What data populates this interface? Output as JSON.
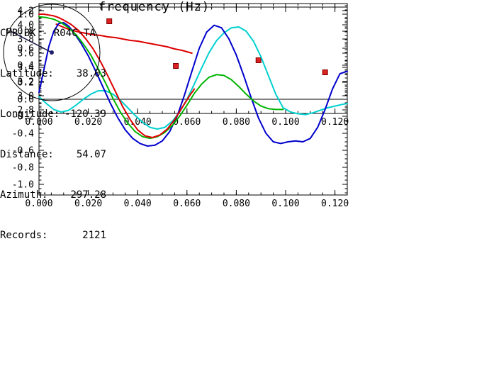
{
  "station_info": {
    "title": "CMB-BK - R04C-TA",
    "rows": [
      {
        "label": "Latitude:",
        "value": "38.03"
      },
      {
        "label": "Longitude:",
        "value": "-120.39"
      },
      {
        "label": "Distance:",
        "value": "54.07"
      },
      {
        "label": "Azimuth:",
        "value": "297.28"
      },
      {
        "label": "Records:",
        "value": "2121"
      }
    ]
  },
  "chart_data": [
    {
      "id": "dispersion",
      "type": "line",
      "title": "",
      "xlabel": "",
      "ylabel": "",
      "xlim": [
        0,
        0.125
      ],
      "ylim": [
        2.75,
        4.25
      ],
      "grid": false,
      "xticks": {
        "values": [
          0.0,
          0.02,
          0.04,
          0.06,
          0.08,
          0.1,
          0.12
        ],
        "labels": [
          "0.000",
          "0.020",
          "0.040",
          "0.060",
          "0.080",
          "0.100",
          "0.120"
        ],
        "minor_step": 0.005
      },
      "yticks": {
        "values": [
          2.8,
          3.0,
          3.2,
          3.4,
          3.6,
          3.8,
          4.0,
          4.2
        ],
        "labels": [
          "2.8",
          "3.0",
          "3.2",
          "3.4",
          "3.6",
          "3.8",
          "4.0",
          "4.2"
        ],
        "minor_step": 0.05
      },
      "series": [
        {
          "name": "predicted-dispersion-curve",
          "type": "line",
          "color": "#dd0000",
          "width": 2,
          "x": [
            0.007,
            0.009,
            0.011,
            0.013,
            0.016,
            0.019,
            0.022,
            0.025,
            0.028,
            0.031,
            0.034,
            0.037,
            0.04,
            0.043,
            0.046,
            0.049,
            0.052,
            0.055,
            0.058,
            0.06,
            0.062
          ],
          "y": [
            4.01,
            3.98,
            3.95,
            3.93,
            3.9,
            3.88,
            3.86,
            3.85,
            3.83,
            3.82,
            3.8,
            3.78,
            3.77,
            3.75,
            3.73,
            3.71,
            3.69,
            3.66,
            3.64,
            3.62,
            3.6
          ]
        },
        {
          "name": "measured-velocity-points",
          "type": "scatter",
          "marker": "square",
          "color": "#dd2020",
          "edge": "#7a0000",
          "x": [
            0.0285,
            0.0555,
            0.089,
            0.116
          ],
          "y": [
            4.05,
            3.42,
            3.5,
            3.33
          ]
        }
      ]
    },
    {
      "id": "correlation",
      "type": "line",
      "title": "",
      "xlabel": "frequency (Hz)",
      "ylabel": "",
      "xlim": [
        0,
        0.125
      ],
      "ylim": [
        -1.125,
        1.125
      ],
      "zero_line": true,
      "grid": false,
      "xticks": {
        "values": [
          0.0,
          0.02,
          0.04,
          0.06,
          0.08,
          0.1,
          0.12
        ],
        "labels": [
          "0.000",
          "0.020",
          "0.040",
          "0.060",
          "0.080",
          "0.100",
          "0.120"
        ],
        "minor_step": 0.005
      },
      "yticks": {
        "values": [
          -1.0,
          -0.8,
          -0.6,
          -0.4,
          -0.2,
          0.0,
          0.2,
          0.4,
          0.6,
          0.8,
          1.0
        ],
        "labels": [
          "-1.0",
          "-0.8",
          "-0.6",
          "-0.4",
          "-0.2",
          "0.0",
          "0.2",
          "0.4",
          "0.6",
          "0.8",
          "1.0"
        ],
        "minor_step": 0.05
      },
      "series": [
        {
          "name": "correlation-trace-cyan",
          "type": "line",
          "color": "#00d0d0",
          "width": 2,
          "x": [
            0.0,
            0.003,
            0.006,
            0.009,
            0.012,
            0.015,
            0.018,
            0.021,
            0.024,
            0.027,
            0.03,
            0.033,
            0.036,
            0.039,
            0.042,
            0.045,
            0.048,
            0.051,
            0.054,
            0.057,
            0.06,
            0.063,
            0.066,
            0.069,
            0.072,
            0.075,
            0.078,
            0.081,
            0.084,
            0.087,
            0.09,
            0.093,
            0.096,
            0.099,
            0.102,
            0.105,
            0.108,
            0.111,
            0.114,
            0.117,
            0.12,
            0.123,
            0.125
          ],
          "y": [
            0.03,
            -0.05,
            -0.12,
            -0.15,
            -0.13,
            -0.07,
            0.0,
            0.06,
            0.1,
            0.1,
            0.06,
            -0.01,
            -0.1,
            -0.19,
            -0.27,
            -0.33,
            -0.35,
            -0.33,
            -0.26,
            -0.15,
            0.0,
            0.18,
            0.37,
            0.55,
            0.69,
            0.78,
            0.84,
            0.85,
            0.8,
            0.68,
            0.5,
            0.28,
            0.06,
            -0.1,
            -0.15,
            -0.17,
            -0.18,
            -0.16,
            -0.13,
            -0.1,
            -0.08,
            -0.06,
            -0.05
          ]
        },
        {
          "name": "correlation-trace-blue",
          "type": "line",
          "color": "#0000cd",
          "width": 2,
          "x": [
            0.0,
            0.002,
            0.004,
            0.006,
            0.008,
            0.01,
            0.012,
            0.014,
            0.017,
            0.02,
            0.023,
            0.026,
            0.029,
            0.032,
            0.035,
            0.038,
            0.041,
            0.044,
            0.047,
            0.05,
            0.053,
            0.056,
            0.059,
            0.062,
            0.065,
            0.068,
            0.071,
            0.074,
            0.077,
            0.08,
            0.083,
            0.086,
            0.089,
            0.092,
            0.095,
            0.098,
            0.101,
            0.104,
            0.107,
            0.11,
            0.113,
            0.116,
            0.119,
            0.122,
            0.125
          ],
          "y": [
            0.08,
            0.35,
            0.62,
            0.8,
            0.89,
            0.9,
            0.86,
            0.79,
            0.66,
            0.51,
            0.33,
            0.14,
            -0.05,
            -0.22,
            -0.36,
            -0.46,
            -0.52,
            -0.55,
            -0.54,
            -0.49,
            -0.38,
            -0.2,
            0.05,
            0.33,
            0.6,
            0.79,
            0.87,
            0.84,
            0.71,
            0.52,
            0.28,
            0.02,
            -0.22,
            -0.4,
            -0.5,
            -0.52,
            -0.5,
            -0.49,
            -0.5,
            -0.46,
            -0.33,
            -0.12,
            0.12,
            0.3,
            0.33
          ]
        },
        {
          "name": "correlation-trace-green",
          "type": "line",
          "color": "#00b400",
          "width": 2,
          "x": [
            0.0,
            0.003,
            0.006,
            0.009,
            0.012,
            0.015,
            0.018,
            0.021,
            0.024,
            0.027,
            0.03,
            0.033,
            0.036,
            0.039,
            0.042,
            0.045,
            0.048,
            0.051,
            0.054,
            0.057,
            0.06,
            0.063,
            0.066,
            0.069,
            0.072,
            0.075,
            0.078,
            0.081,
            0.084,
            0.087,
            0.09,
            0.093,
            0.096,
            0.099
          ],
          "y": [
            0.97,
            0.96,
            0.94,
            0.9,
            0.84,
            0.76,
            0.65,
            0.52,
            0.36,
            0.19,
            0.01,
            -0.15,
            -0.28,
            -0.38,
            -0.44,
            -0.46,
            -0.44,
            -0.39,
            -0.31,
            -0.2,
            -0.07,
            0.07,
            0.18,
            0.26,
            0.29,
            0.28,
            0.23,
            0.15,
            0.06,
            -0.02,
            -0.08,
            -0.11,
            -0.12,
            -0.12
          ]
        },
        {
          "name": "correlation-trace-red",
          "type": "line",
          "color": "#dd0000",
          "width": 2,
          "x": [
            0.0,
            0.002,
            0.004,
            0.006,
            0.008,
            0.01,
            0.013,
            0.016,
            0.019,
            0.022,
            0.025,
            0.028,
            0.031,
            0.034,
            0.037,
            0.04,
            0.043,
            0.046,
            0.049,
            0.052,
            0.055,
            0.058,
            0.061,
            0.063
          ],
          "y": [
            1.0,
            1.0,
            0.99,
            0.98,
            0.96,
            0.93,
            0.88,
            0.81,
            0.71,
            0.59,
            0.44,
            0.27,
            0.09,
            -0.09,
            -0.24,
            -0.36,
            -0.43,
            -0.45,
            -0.42,
            -0.35,
            -0.24,
            -0.1,
            0.04,
            0.12
          ]
        }
      ]
    },
    {
      "id": "azimuth",
      "type": "azimuth",
      "azimuth_deg": 297.28,
      "line_color": "#101040",
      "center_dot_color": "#202070"
    }
  ]
}
